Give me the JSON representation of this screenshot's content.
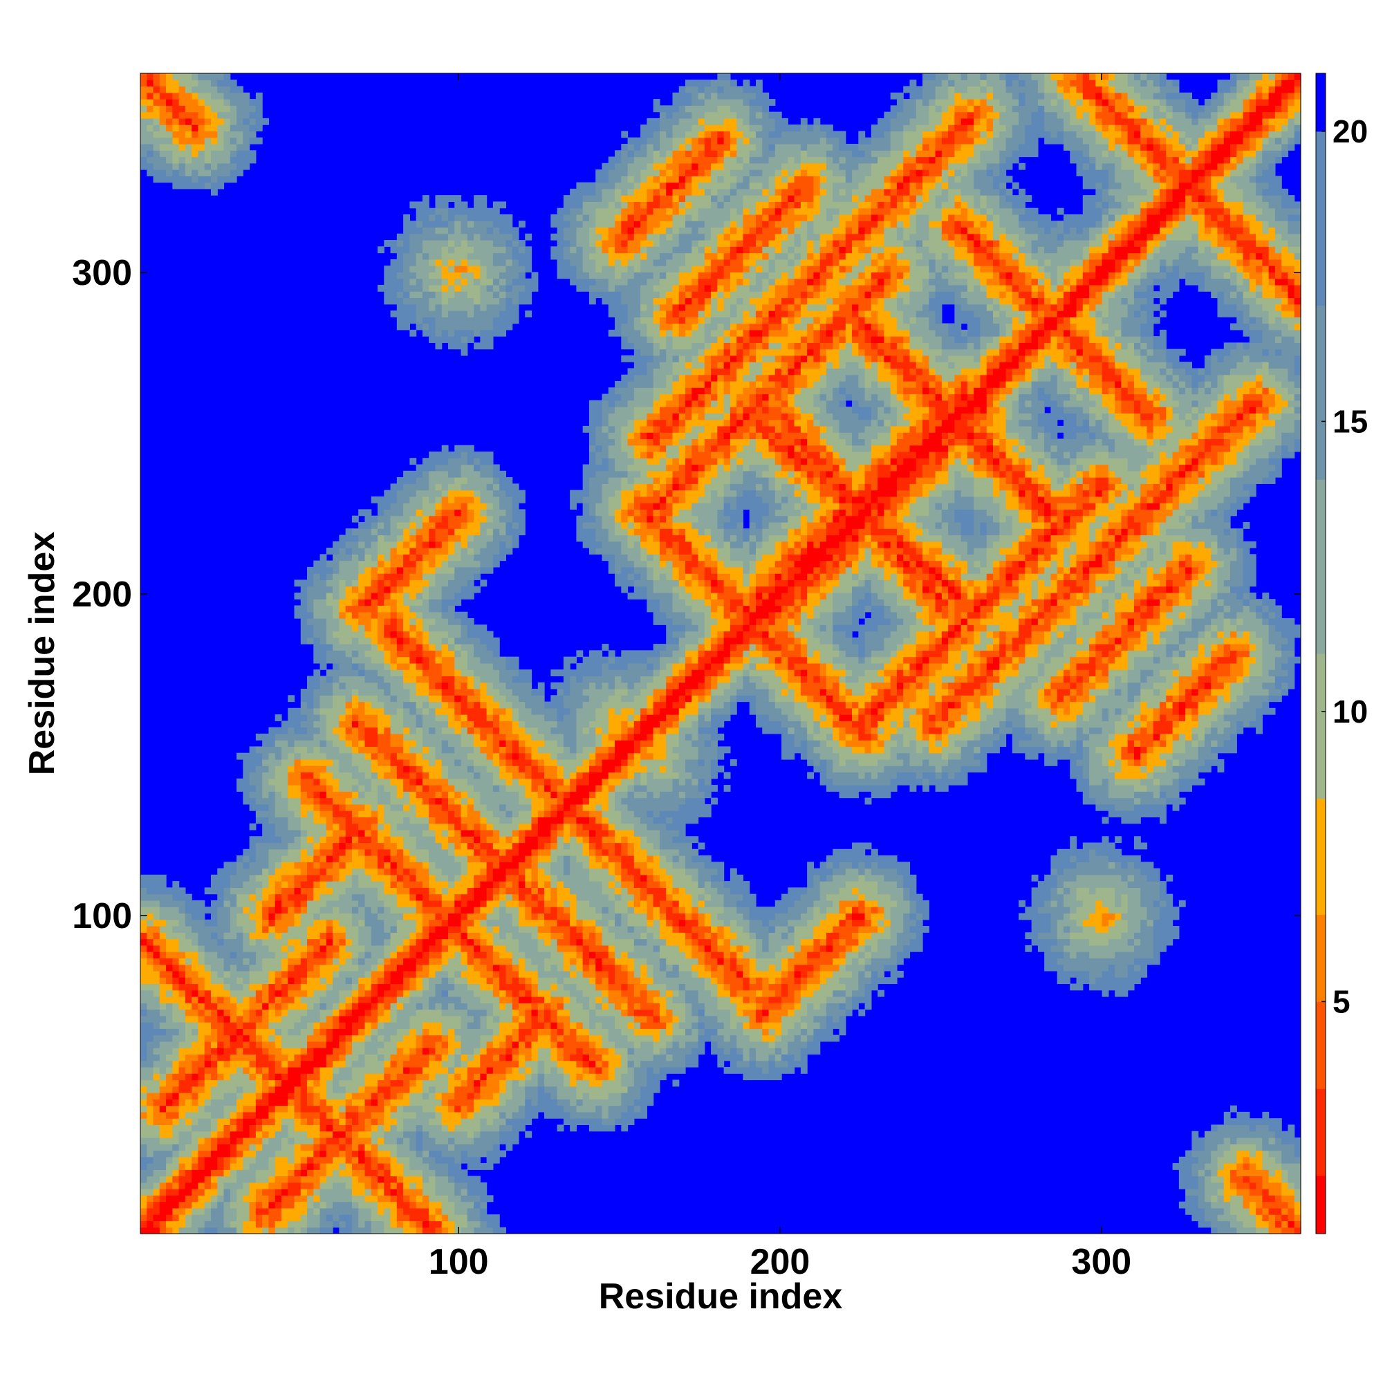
{
  "chart_data": {
    "type": "heatmap",
    "title": "",
    "xlabel": "Residue index",
    "ylabel": "Residue index",
    "xlim": [
      1,
      362
    ],
    "ylim": [
      1,
      362
    ],
    "x_ticks": [
      100,
      200,
      300
    ],
    "y_ticks": [
      100,
      200,
      300
    ],
    "colorbar": {
      "range": [
        1,
        21
      ],
      "ticks": [
        5,
        10,
        15,
        20
      ],
      "colors": [
        "#ff0000",
        "#ff2a00",
        "#ff5500",
        "#ff7f00",
        "#ffaa00",
        "#9fb58c",
        "#8aa89e",
        "#6f93a8",
        "#5d88b8",
        "#0000ff"
      ],
      "thresholds": [
        2,
        3.5,
        5,
        6.5,
        8.5,
        11,
        14,
        17,
        20
      ]
    },
    "background_color": "#0000ff",
    "structure": {
      "diagonal": "contact band along the main diagonal (distance ~ 0-5)",
      "antiparallel_strands": [
        [
          1,
          362,
          18,
          345
        ],
        [
          2,
          92,
          64,
          30
        ],
        [
          60,
          92,
          8,
          40
        ],
        [
          75,
          120,
          142,
          53
        ],
        [
          69,
          160,
          143,
          86
        ],
        [
          118,
          150,
          190,
          78
        ],
        [
          160,
          223,
          226,
          157
        ],
        [
          195,
          252,
          256,
          199
        ],
        [
          225,
          283,
          284,
          226
        ],
        [
          255,
          315,
          291,
          279
        ],
        [
          292,
          362,
          345,
          309
        ]
      ],
      "parallel_strands": [
        [
          42,
          100,
          70,
          128
        ],
        [
          160,
          248,
          260,
          348
        ],
        [
          190,
          195,
          258,
          263
        ],
        [
          226,
          160,
          300,
          234
        ],
        [
          287,
          168,
          327,
          208
        ],
        [
          70,
          195,
          100,
          225
        ],
        [
          150,
          310,
          181,
          341
        ]
      ],
      "cross_clusters": [
        [
          100,
          300
        ],
        [
          100,
          130
        ],
        [
          160,
          150
        ],
        [
          195,
          200
        ],
        [
          225,
          226
        ],
        [
          255,
          260
        ],
        [
          292,
          295
        ],
        [
          320,
          318
        ],
        [
          30,
          30
        ],
        [
          70,
          70
        ]
      ]
    }
  }
}
